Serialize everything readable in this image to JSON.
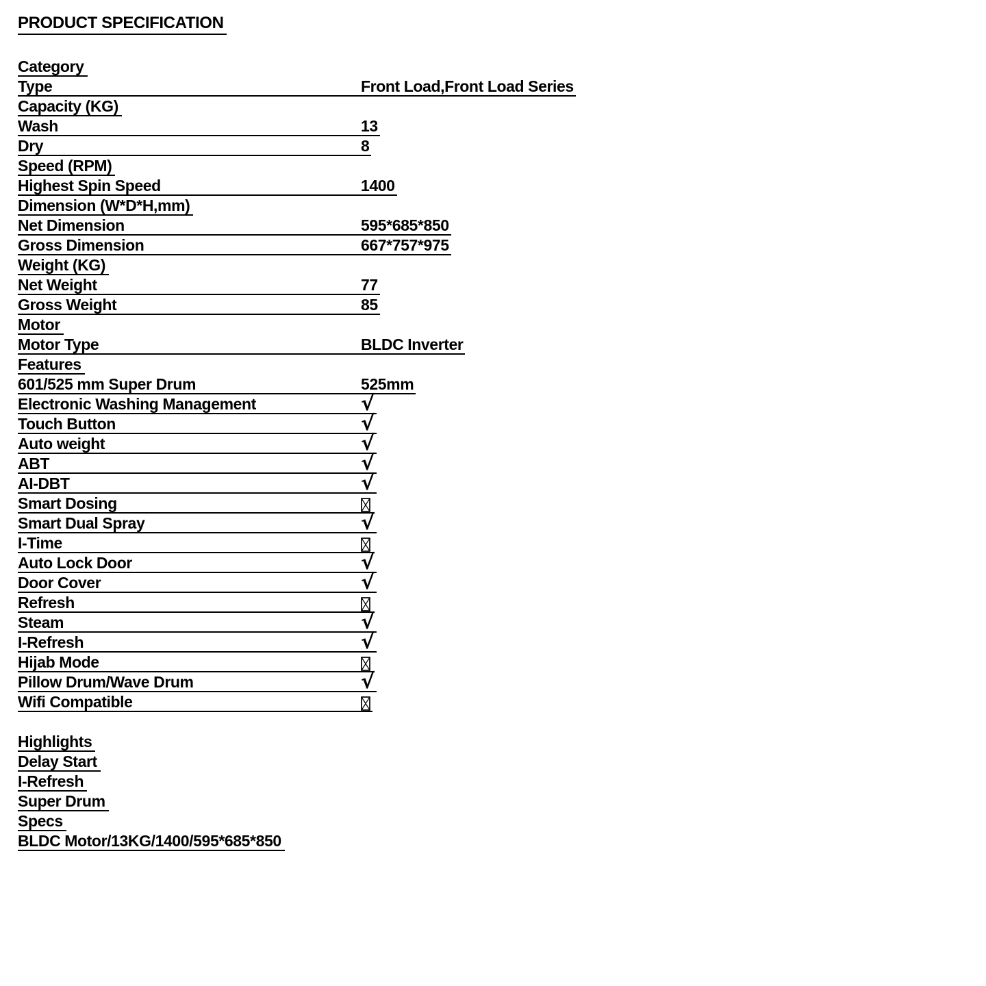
{
  "page": {
    "title": "PRODUCT SPECIFICATION"
  },
  "symbols": {
    "available": "√",
    "unavailable": "☒"
  },
  "spec_sections": [
    {
      "header": "Category",
      "rows": [
        {
          "label": "Type",
          "value": "Front Load,Front Load Series"
        }
      ]
    },
    {
      "header": "Capacity (KG)",
      "rows": [
        {
          "label": "Wash",
          "value": "13"
        },
        {
          "label": "Dry",
          "value": "8"
        }
      ]
    },
    {
      "header": "Speed (RPM)",
      "rows": [
        {
          "label": "Highest Spin Speed",
          "value": "1400"
        }
      ]
    },
    {
      "header": "Dimension (W*D*H,mm)",
      "rows": [
        {
          "label": "Net Dimension",
          "value": "595*685*850"
        },
        {
          "label": "Gross Dimension",
          "value": "667*757*975"
        }
      ]
    },
    {
      "header": "Weight (KG)",
      "rows": [
        {
          "label": "Net Weight",
          "value": "77"
        },
        {
          "label": "Gross Weight",
          "value": "85"
        }
      ]
    },
    {
      "header": "Motor",
      "rows": [
        {
          "label": "Motor Type",
          "value": "BLDC Inverter"
        }
      ]
    },
    {
      "header": "Features",
      "rows": [
        {
          "label": "601/525 mm Super Drum",
          "value": "525mm"
        },
        {
          "label": "Electronic Washing Management",
          "value": "√"
        },
        {
          "label": "Touch Button",
          "value": "√"
        },
        {
          "label": "Auto weight",
          "value": "√"
        },
        {
          "label": "ABT",
          "value": "√"
        },
        {
          "label": "AI-DBT",
          "value": "√"
        },
        {
          "label": "Smart Dosing",
          "value": "☒"
        },
        {
          "label": "Smart Dual Spray",
          "value": "√"
        },
        {
          "label": "I-Time",
          "value": "☒"
        },
        {
          "label": "Auto Lock Door",
          "value": "√"
        },
        {
          "label": "Door Cover",
          "value": "√"
        },
        {
          "label": "Refresh",
          "value": "☒"
        },
        {
          "label": "Steam",
          "value": "√"
        },
        {
          "label": "I-Refresh",
          "value": "√"
        },
        {
          "label": "Hijab Mode",
          "value": "☒"
        },
        {
          "label": "Pillow Drum/Wave Drum",
          "value": "√"
        },
        {
          "label": "Wifi Compatible",
          "value": "☒"
        }
      ]
    }
  ],
  "footer": {
    "groups": [
      {
        "header": "Highlights",
        "items": [
          "Delay Start",
          "I-Refresh",
          "Super Drum"
        ]
      },
      {
        "header": "Specs",
        "items": [
          "BLDC Motor/13KG/1400/595*685*850"
        ]
      }
    ]
  }
}
